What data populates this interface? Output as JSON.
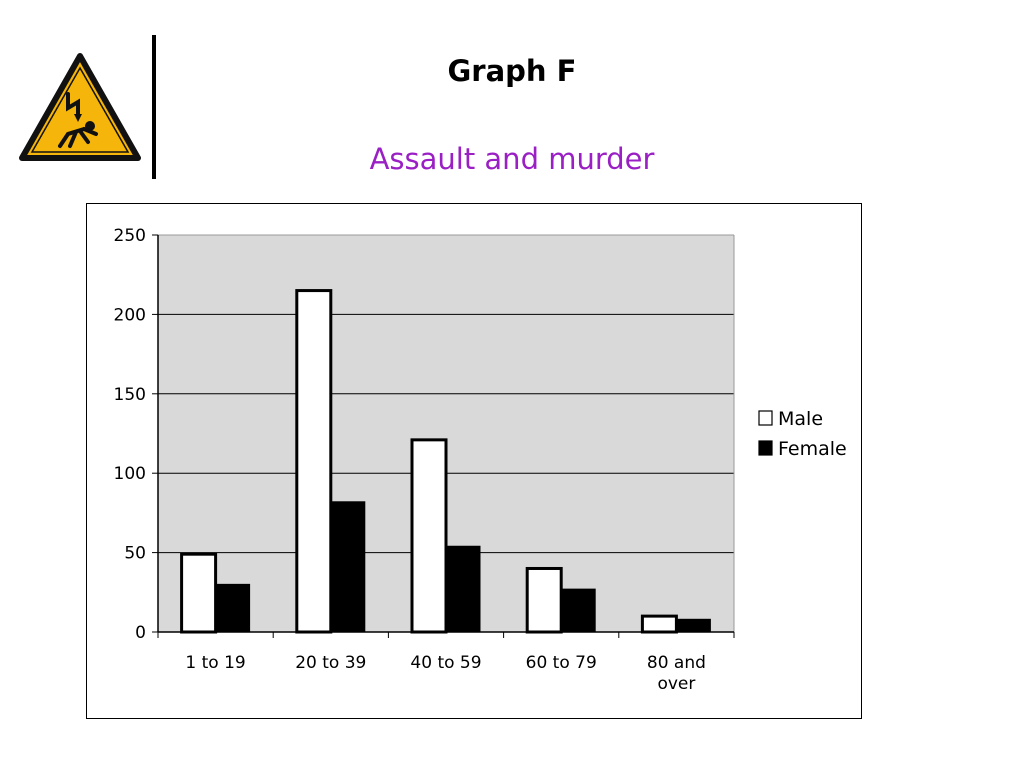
{
  "header": {
    "title": "Graph F",
    "subtitle": "Assault and murder",
    "logo_icon": "electric-shock-warning-icon"
  },
  "colors": {
    "subtitle": "#9a1fc4",
    "plot_background": "#d9d9d9",
    "male": "#ffffff",
    "female": "#000000",
    "warning_yellow": "#f5b50a"
  },
  "chart_data": {
    "type": "bar",
    "categories": [
      [
        "1 to 19"
      ],
      [
        "20 to 39"
      ],
      [
        "40 to 59"
      ],
      [
        "60 to 79"
      ],
      [
        "80 and",
        "over"
      ]
    ],
    "series": [
      {
        "name": "Male",
        "color": "#ffffff",
        "values": [
          49,
          215,
          121,
          40,
          10
        ]
      },
      {
        "name": "Female",
        "color": "#000000",
        "values": [
          30,
          82,
          54,
          27,
          8
        ]
      }
    ],
    "ylim": [
      0,
      250
    ],
    "yticks": [
      0,
      50,
      100,
      150,
      200,
      250
    ],
    "grid": true,
    "legend_position": "right"
  }
}
